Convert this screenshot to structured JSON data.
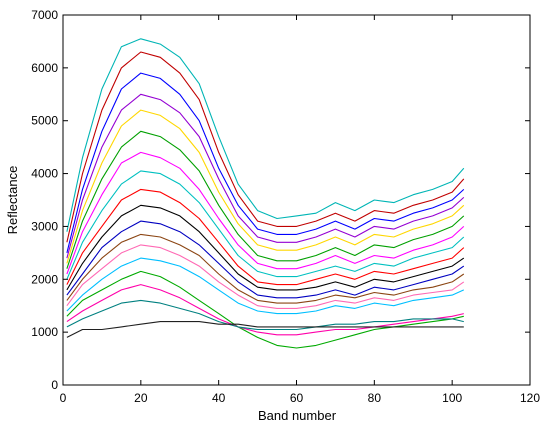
{
  "chart_data": {
    "type": "line",
    "xlabel": "Band number",
    "ylabel": "Reflectance",
    "xlim": [
      0,
      120
    ],
    "ylim": [
      0,
      7000
    ],
    "xticks": [
      0,
      20,
      40,
      60,
      80,
      100,
      120
    ],
    "yticks": [
      0,
      1000,
      2000,
      3000,
      4000,
      5000,
      6000,
      7000
    ],
    "grid": false,
    "legend": "none",
    "x": [
      1,
      5,
      10,
      15,
      20,
      25,
      30,
      35,
      40,
      45,
      50,
      55,
      60,
      65,
      70,
      75,
      80,
      85,
      90,
      95,
      100,
      103
    ],
    "series": [
      {
        "color": "#00b5b5",
        "values": [
          2900,
          4300,
          5600,
          6400,
          6550,
          6450,
          6200,
          5700,
          4700,
          3800,
          3300,
          3150,
          3200,
          3250,
          3450,
          3300,
          3500,
          3450,
          3600,
          3700,
          3850,
          4100
        ]
      },
      {
        "color": "#c00000",
        "values": [
          2700,
          4000,
          5200,
          6000,
          6300,
          6200,
          5900,
          5400,
          4400,
          3600,
          3100,
          3000,
          3000,
          3100,
          3250,
          3100,
          3300,
          3250,
          3400,
          3500,
          3650,
          3900
        ]
      },
      {
        "color": "#0000ff",
        "values": [
          2500,
          3700,
          4800,
          5600,
          5900,
          5800,
          5500,
          5000,
          4100,
          3400,
          2950,
          2850,
          2850,
          2950,
          3100,
          2950,
          3150,
          3100,
          3250,
          3350,
          3500,
          3700
        ]
      },
      {
        "color": "#9400d3",
        "values": [
          2400,
          3500,
          4500,
          5200,
          5500,
          5400,
          5150,
          4700,
          3900,
          3200,
          2800,
          2700,
          2700,
          2800,
          2950,
          2800,
          3000,
          2950,
          3100,
          3200,
          3350,
          3550
        ]
      },
      {
        "color": "#ffd700",
        "values": [
          2300,
          3300,
          4200,
          4900,
          5200,
          5100,
          4850,
          4400,
          3650,
          3050,
          2650,
          2550,
          2550,
          2650,
          2800,
          2650,
          2850,
          2800,
          2950,
          3050,
          3200,
          3400
        ]
      },
      {
        "color": "#00a000",
        "values": [
          2200,
          3100,
          3900,
          4500,
          4800,
          4700,
          4450,
          4050,
          3400,
          2850,
          2450,
          2350,
          2350,
          2450,
          2600,
          2450,
          2650,
          2600,
          2750,
          2850,
          3000,
          3200
        ]
      },
      {
        "color": "#ff00ff",
        "values": [
          2100,
          2900,
          3600,
          4200,
          4400,
          4300,
          4100,
          3700,
          3150,
          2650,
          2300,
          2200,
          2200,
          2300,
          2450,
          2300,
          2450,
          2400,
          2550,
          2650,
          2800,
          3000
        ]
      },
      {
        "color": "#00c0c0",
        "values": [
          2000,
          2700,
          3300,
          3800,
          4050,
          4000,
          3800,
          3450,
          2950,
          2450,
          2150,
          2050,
          2050,
          2150,
          2250,
          2150,
          2300,
          2250,
          2400,
          2500,
          2600,
          2800
        ]
      },
      {
        "color": "#ff0000",
        "values": [
          1900,
          2500,
          3000,
          3500,
          3700,
          3650,
          3450,
          3150,
          2700,
          2250,
          1950,
          1900,
          1900,
          2000,
          2100,
          2000,
          2150,
          2100,
          2200,
          2300,
          2400,
          2600
        ]
      },
      {
        "color": "#000000",
        "values": [
          1800,
          2300,
          2800,
          3200,
          3400,
          3350,
          3200,
          2900,
          2500,
          2100,
          1850,
          1800,
          1800,
          1850,
          1950,
          1850,
          2000,
          1950,
          2050,
          2150,
          2250,
          2400
        ]
      },
      {
        "color": "#0000c0",
        "values": [
          1700,
          2100,
          2600,
          2900,
          3100,
          3050,
          2900,
          2650,
          2300,
          1950,
          1700,
          1650,
          1650,
          1700,
          1800,
          1700,
          1850,
          1800,
          1900,
          2000,
          2100,
          2250
        ]
      },
      {
        "color": "#8b4513",
        "values": [
          1600,
          2000,
          2400,
          2700,
          2850,
          2800,
          2650,
          2450,
          2100,
          1800,
          1600,
          1550,
          1550,
          1600,
          1700,
          1650,
          1750,
          1700,
          1800,
          1850,
          1950,
          2100
        ]
      },
      {
        "color": "#ff69b4",
        "values": [
          1500,
          1900,
          2200,
          2500,
          2650,
          2600,
          2450,
          2250,
          1950,
          1700,
          1500,
          1450,
          1450,
          1500,
          1600,
          1550,
          1650,
          1600,
          1700,
          1750,
          1800,
          1950
        ]
      },
      {
        "color": "#00bfff",
        "values": [
          1400,
          1700,
          2000,
          2250,
          2400,
          2350,
          2250,
          2050,
          1800,
          1550,
          1400,
          1350,
          1350,
          1400,
          1500,
          1450,
          1550,
          1500,
          1600,
          1650,
          1700,
          1800
        ]
      },
      {
        "color": "#00aa00",
        "values": [
          1300,
          1600,
          1800,
          2000,
          2150,
          2050,
          1850,
          1600,
          1350,
          1100,
          900,
          750,
          700,
          750,
          850,
          950,
          1050,
          1100,
          1150,
          1200,
          1250,
          1300
        ]
      },
      {
        "color": "#ff00aa",
        "values": [
          1200,
          1400,
          1600,
          1800,
          1900,
          1800,
          1650,
          1450,
          1250,
          1100,
          1000,
          950,
          950,
          1000,
          1050,
          1050,
          1100,
          1150,
          1200,
          1250,
          1300,
          1350
        ]
      },
      {
        "color": "#008080",
        "values": [
          1100,
          1250,
          1400,
          1550,
          1600,
          1550,
          1450,
          1350,
          1200,
          1100,
          1050,
          1050,
          1050,
          1100,
          1150,
          1150,
          1200,
          1200,
          1250,
          1250,
          1250,
          1200
        ]
      },
      {
        "color": "#202020",
        "values": [
          900,
          1050,
          1050,
          1100,
          1150,
          1200,
          1200,
          1200,
          1150,
          1150,
          1100,
          1100,
          1100,
          1100,
          1100,
          1100,
          1100,
          1100,
          1100,
          1100,
          1100,
          1100
        ]
      }
    ]
  }
}
